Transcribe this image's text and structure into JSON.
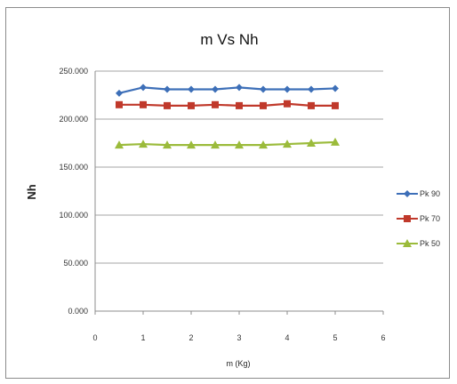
{
  "chart_data": {
    "type": "line",
    "title": "m Vs Nh",
    "xlabel": "m (Kg)",
    "ylabel": "Nh",
    "xlim": [
      0,
      6
    ],
    "ylim": [
      0,
      250000
    ],
    "xticks": [
      "0",
      "1",
      "2",
      "3",
      "4",
      "5",
      "6"
    ],
    "yticks": [
      "0.000",
      "50.000",
      "100.000",
      "150.000",
      "200.000",
      "250.000"
    ],
    "grid": "horizontal",
    "legend_position": "right",
    "x": [
      0.5,
      1,
      1.5,
      2,
      2.5,
      3,
      3.5,
      4,
      4.5,
      5
    ],
    "series": [
      {
        "name": "Pk 90",
        "color": "#3d6fb8",
        "marker": "diamond",
        "values": [
          227000,
          233000,
          231000,
          231000,
          231000,
          233000,
          231000,
          231000,
          231000,
          232000
        ]
      },
      {
        "name": "Pk 70",
        "color": "#c0392b",
        "marker": "square",
        "values": [
          215000,
          215000,
          214000,
          214000,
          215000,
          214000,
          214000,
          216000,
          214000,
          214000
        ]
      },
      {
        "name": "Pk 50",
        "color": "#9bbb3b",
        "marker": "triangle",
        "values": [
          173000,
          174000,
          173000,
          173000,
          173000,
          173000,
          173000,
          174000,
          175000,
          176000
        ]
      }
    ]
  }
}
